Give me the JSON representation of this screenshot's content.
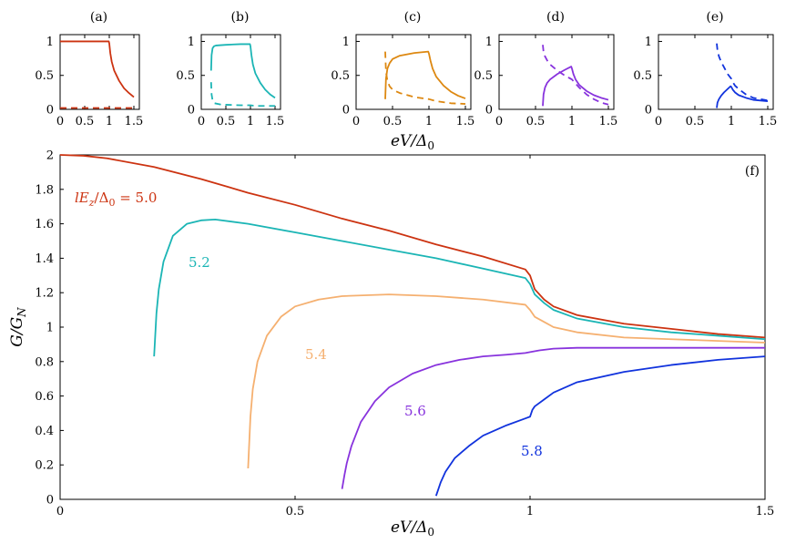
{
  "chart_data": [
    {
      "type": "line",
      "panel": "a",
      "panel_label": "(a)",
      "xlim": [
        0,
        1.5
      ],
      "ylim": [
        0,
        1.1
      ],
      "xticks": [
        "0",
        "0.5",
        "1",
        "1.5"
      ],
      "yticks": [
        "0",
        "0.5",
        "1"
      ],
      "series": [
        {
          "style": "solid",
          "color": "#cc3311",
          "points": [
            [
              0,
              1
            ],
            [
              0.5,
              1
            ],
            [
              0.99,
              1
            ],
            [
              1.0,
              0.97
            ],
            [
              1.02,
              0.83
            ],
            [
              1.05,
              0.7
            ],
            [
              1.1,
              0.57
            ],
            [
              1.2,
              0.42
            ],
            [
              1.3,
              0.31
            ],
            [
              1.4,
              0.24
            ],
            [
              1.5,
              0.18
            ]
          ]
        },
        {
          "style": "dashed",
          "color": "#cc3311",
          "points": [
            [
              0,
              0.02
            ],
            [
              1.0,
              0.02
            ],
            [
              1.5,
              0.02
            ]
          ]
        }
      ]
    },
    {
      "type": "line",
      "panel": "b",
      "panel_label": "(b)",
      "xlim": [
        0,
        1.5
      ],
      "ylim": [
        0,
        1.1
      ],
      "xticks": [
        "0",
        "0.5",
        "1",
        "1.5"
      ],
      "yticks": [
        "0",
        "0.5",
        "1"
      ],
      "series": [
        {
          "style": "solid",
          "color": "#1bb5b5",
          "points": [
            [
              0.2,
              0.57
            ],
            [
              0.21,
              0.8
            ],
            [
              0.23,
              0.9
            ],
            [
              0.26,
              0.93
            ],
            [
              0.3,
              0.94
            ],
            [
              0.5,
              0.95
            ],
            [
              0.8,
              0.96
            ],
            [
              0.99,
              0.96
            ],
            [
              1.0,
              0.93
            ],
            [
              1.02,
              0.8
            ],
            [
              1.05,
              0.66
            ],
            [
              1.1,
              0.53
            ],
            [
              1.2,
              0.39
            ],
            [
              1.3,
              0.29
            ],
            [
              1.4,
              0.22
            ],
            [
              1.5,
              0.17
            ]
          ]
        },
        {
          "style": "dashed",
          "color": "#1bb5b5",
          "points": [
            [
              0.2,
              0.4
            ],
            [
              0.21,
              0.22
            ],
            [
              0.23,
              0.13
            ],
            [
              0.27,
              0.09
            ],
            [
              0.4,
              0.07
            ],
            [
              0.8,
              0.06
            ],
            [
              1.0,
              0.06
            ],
            [
              1.1,
              0.05
            ],
            [
              1.5,
              0.05
            ]
          ]
        }
      ]
    },
    {
      "type": "line",
      "panel": "c",
      "panel_label": "(c)",
      "xlim": [
        0,
        1.5
      ],
      "ylim": [
        0,
        1.1
      ],
      "xticks": [
        "0",
        "0.5",
        "1",
        "1.5"
      ],
      "yticks": [
        "0",
        "0.5",
        "1"
      ],
      "series": [
        {
          "style": "solid",
          "color": "#dd8811",
          "points": [
            [
              0.4,
              0.15
            ],
            [
              0.41,
              0.45
            ],
            [
              0.43,
              0.6
            ],
            [
              0.46,
              0.68
            ],
            [
              0.5,
              0.74
            ],
            [
              0.6,
              0.79
            ],
            [
              0.8,
              0.83
            ],
            [
              0.99,
              0.85
            ],
            [
              1.0,
              0.82
            ],
            [
              1.02,
              0.72
            ],
            [
              1.05,
              0.6
            ],
            [
              1.1,
              0.48
            ],
            [
              1.2,
              0.35
            ],
            [
              1.3,
              0.26
            ],
            [
              1.4,
              0.2
            ],
            [
              1.5,
              0.16
            ]
          ]
        },
        {
          "style": "dashed",
          "color": "#dd8811",
          "points": [
            [
              0.4,
              0.85
            ],
            [
              0.41,
              0.55
            ],
            [
              0.43,
              0.42
            ],
            [
              0.46,
              0.34
            ],
            [
              0.5,
              0.29
            ],
            [
              0.6,
              0.24
            ],
            [
              0.8,
              0.18
            ],
            [
              1.0,
              0.15
            ],
            [
              1.1,
              0.12
            ],
            [
              1.3,
              0.09
            ],
            [
              1.5,
              0.08
            ]
          ]
        }
      ]
    },
    {
      "type": "line",
      "panel": "d",
      "panel_label": "(d)",
      "xlim": [
        0,
        1.5
      ],
      "ylim": [
        0,
        1.1
      ],
      "xticks": [
        "0",
        "0.5",
        "1",
        "1.5"
      ],
      "yticks": [
        "0",
        "0.5",
        "1"
      ],
      "series": [
        {
          "style": "solid",
          "color": "#8833dd",
          "points": [
            [
              0.6,
              0.05
            ],
            [
              0.61,
              0.22
            ],
            [
              0.63,
              0.32
            ],
            [
              0.66,
              0.39
            ],
            [
              0.7,
              0.44
            ],
            [
              0.8,
              0.52
            ],
            [
              0.9,
              0.58
            ],
            [
              0.99,
              0.63
            ],
            [
              1.0,
              0.6
            ],
            [
              1.02,
              0.52
            ],
            [
              1.05,
              0.44
            ],
            [
              1.1,
              0.36
            ],
            [
              1.2,
              0.27
            ],
            [
              1.3,
              0.21
            ],
            [
              1.4,
              0.17
            ],
            [
              1.5,
              0.14
            ]
          ]
        },
        {
          "style": "dashed",
          "color": "#8833dd",
          "points": [
            [
              0.6,
              0.95
            ],
            [
              0.61,
              0.85
            ],
            [
              0.63,
              0.78
            ],
            [
              0.66,
              0.72
            ],
            [
              0.7,
              0.66
            ],
            [
              0.8,
              0.57
            ],
            [
              0.9,
              0.5
            ],
            [
              1.0,
              0.44
            ],
            [
              1.1,
              0.32
            ],
            [
              1.2,
              0.22
            ],
            [
              1.3,
              0.15
            ],
            [
              1.4,
              0.1
            ],
            [
              1.5,
              0.07
            ]
          ]
        }
      ]
    },
    {
      "type": "line",
      "panel": "e",
      "panel_label": "(e)",
      "xlim": [
        0,
        1.5
      ],
      "ylim": [
        0,
        1.1
      ],
      "xticks": [
        "0",
        "0.5",
        "1",
        "1.5"
      ],
      "yticks": [
        "0",
        "0.5",
        "1"
      ],
      "series": [
        {
          "style": "solid",
          "color": "#1133dd",
          "points": [
            [
              0.8,
              0.02
            ],
            [
              0.81,
              0.1
            ],
            [
              0.83,
              0.15
            ],
            [
              0.86,
              0.2
            ],
            [
              0.9,
              0.25
            ],
            [
              0.95,
              0.3
            ],
            [
              0.99,
              0.34
            ],
            [
              1.0,
              0.33
            ],
            [
              1.02,
              0.29
            ],
            [
              1.05,
              0.25
            ],
            [
              1.1,
              0.21
            ],
            [
              1.2,
              0.17
            ],
            [
              1.3,
              0.14
            ],
            [
              1.4,
              0.13
            ],
            [
              1.5,
              0.12
            ]
          ]
        },
        {
          "style": "dashed",
          "color": "#1133dd",
          "points": [
            [
              0.8,
              0.97
            ],
            [
              0.81,
              0.87
            ],
            [
              0.83,
              0.78
            ],
            [
              0.86,
              0.7
            ],
            [
              0.9,
              0.62
            ],
            [
              0.95,
              0.52
            ],
            [
              1.0,
              0.45
            ],
            [
              1.02,
              0.4
            ],
            [
              1.05,
              0.35
            ],
            [
              1.1,
              0.3
            ],
            [
              1.2,
              0.22
            ],
            [
              1.3,
              0.17
            ],
            [
              1.4,
              0.15
            ],
            [
              1.5,
              0.13
            ]
          ]
        }
      ]
    },
    {
      "type": "line",
      "panel": "f",
      "panel_label": "(f)",
      "xlabel": "eV/Δ0",
      "ylabel": "G/GN",
      "top_xlabel": "eV/Δ0",
      "xlim": [
        0,
        1.5
      ],
      "ylim": [
        0,
        2
      ],
      "xticks": [
        "0",
        "0.5",
        "1",
        "1.5"
      ],
      "yticks": [
        "0",
        "0.2",
        "0.4",
        "0.6",
        "0.8",
        "1",
        "1.2",
        "1.4",
        "1.6",
        "1.8",
        "2"
      ],
      "series": [
        {
          "label": "lEz/Δ0 = 5.0",
          "color": "#cc3311",
          "points": [
            [
              0,
              2.0
            ],
            [
              0.05,
              1.995
            ],
            [
              0.1,
              1.98
            ],
            [
              0.2,
              1.93
            ],
            [
              0.3,
              1.86
            ],
            [
              0.4,
              1.78
            ],
            [
              0.5,
              1.71
            ],
            [
              0.6,
              1.63
            ],
            [
              0.7,
              1.56
            ],
            [
              0.8,
              1.48
            ],
            [
              0.9,
              1.41
            ],
            [
              0.99,
              1.335
            ],
            [
              1.0,
              1.3
            ],
            [
              1.01,
              1.22
            ],
            [
              1.03,
              1.16
            ],
            [
              1.05,
              1.12
            ],
            [
              1.1,
              1.07
            ],
            [
              1.2,
              1.02
            ],
            [
              1.3,
              0.99
            ],
            [
              1.4,
              0.96
            ],
            [
              1.5,
              0.94
            ]
          ]
        },
        {
          "label": "5.2",
          "color": "#1bb5b5",
          "points": [
            [
              0.2,
              0.83
            ],
            [
              0.205,
              1.08
            ],
            [
              0.21,
              1.22
            ],
            [
              0.22,
              1.38
            ],
            [
              0.24,
              1.53
            ],
            [
              0.27,
              1.6
            ],
            [
              0.3,
              1.62
            ],
            [
              0.33,
              1.625
            ],
            [
              0.4,
              1.6
            ],
            [
              0.5,
              1.55
            ],
            [
              0.6,
              1.5
            ],
            [
              0.7,
              1.45
            ],
            [
              0.8,
              1.4
            ],
            [
              0.9,
              1.34
            ],
            [
              0.99,
              1.285
            ],
            [
              1.0,
              1.25
            ],
            [
              1.01,
              1.19
            ],
            [
              1.03,
              1.14
            ],
            [
              1.05,
              1.1
            ],
            [
              1.1,
              1.05
            ],
            [
              1.2,
              1.0
            ],
            [
              1.3,
              0.97
            ],
            [
              1.4,
              0.95
            ],
            [
              1.5,
              0.93
            ]
          ]
        },
        {
          "label": "5.4",
          "color": "#f5b070",
          "points": [
            [
              0.4,
              0.18
            ],
            [
              0.405,
              0.48
            ],
            [
              0.41,
              0.64
            ],
            [
              0.42,
              0.8
            ],
            [
              0.44,
              0.95
            ],
            [
              0.47,
              1.06
            ],
            [
              0.5,
              1.12
            ],
            [
              0.55,
              1.16
            ],
            [
              0.6,
              1.18
            ],
            [
              0.7,
              1.19
            ],
            [
              0.8,
              1.18
            ],
            [
              0.9,
              1.16
            ],
            [
              0.99,
              1.13
            ],
            [
              1.0,
              1.1
            ],
            [
              1.01,
              1.06
            ],
            [
              1.03,
              1.03
            ],
            [
              1.05,
              1.0
            ],
            [
              1.1,
              0.97
            ],
            [
              1.2,
              0.94
            ],
            [
              1.3,
              0.93
            ],
            [
              1.4,
              0.92
            ],
            [
              1.5,
              0.91
            ]
          ]
        },
        {
          "label": "5.6",
          "color": "#8833dd",
          "points": [
            [
              0.6,
              0.06
            ],
            [
              0.605,
              0.14
            ],
            [
              0.61,
              0.21
            ],
            [
              0.62,
              0.31
            ],
            [
              0.64,
              0.45
            ],
            [
              0.67,
              0.57
            ],
            [
              0.7,
              0.65
            ],
            [
              0.75,
              0.73
            ],
            [
              0.8,
              0.78
            ],
            [
              0.85,
              0.81
            ],
            [
              0.9,
              0.83
            ],
            [
              0.95,
              0.84
            ],
            [
              0.99,
              0.85
            ],
            [
              1.0,
              0.855
            ],
            [
              1.02,
              0.865
            ],
            [
              1.05,
              0.875
            ],
            [
              1.1,
              0.88
            ],
            [
              1.2,
              0.88
            ],
            [
              1.3,
              0.88
            ],
            [
              1.5,
              0.88
            ]
          ]
        },
        {
          "label": "5.8",
          "color": "#1133dd",
          "points": [
            [
              0.8,
              0.02
            ],
            [
              0.805,
              0.06
            ],
            [
              0.81,
              0.1
            ],
            [
              0.82,
              0.16
            ],
            [
              0.84,
              0.24
            ],
            [
              0.87,
              0.31
            ],
            [
              0.9,
              0.37
            ],
            [
              0.95,
              0.43
            ],
            [
              0.99,
              0.47
            ],
            [
              1.0,
              0.48
            ],
            [
              1.005,
              0.52
            ],
            [
              1.01,
              0.54
            ],
            [
              1.03,
              0.58
            ],
            [
              1.05,
              0.62
            ],
            [
              1.1,
              0.68
            ],
            [
              1.2,
              0.74
            ],
            [
              1.3,
              0.78
            ],
            [
              1.4,
              0.81
            ],
            [
              1.5,
              0.83
            ]
          ]
        }
      ]
    }
  ]
}
